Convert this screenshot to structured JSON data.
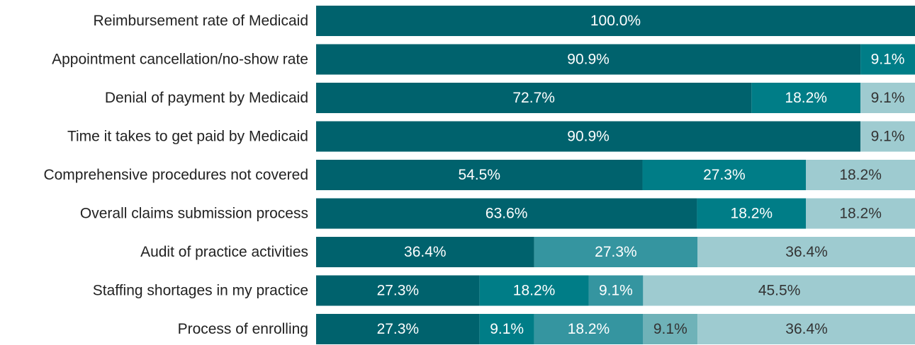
{
  "chart_data": {
    "type": "stacked_barh",
    "categories": [
      "Reimbursement rate of Medicaid",
      "Appointment cancellation/no-show rate",
      "Denial of payment by Medicaid",
      "Time it takes to get paid by Medicaid",
      "Comprehensive procedures not covered",
      "Overall claims submission process",
      "Audit of practice activities",
      "Staffing shortages in my practice",
      "Process of enrolling"
    ],
    "xlim": [
      0,
      100
    ],
    "series": [
      {
        "color": "#00626d",
        "text_color": "#ffffff",
        "values": [
          100,
          90.9,
          72.7,
          90.9,
          54.5,
          63.6,
          36.4,
          27.3,
          27.3
        ],
        "value_labels": [
          "100.0%",
          "90.9%",
          "72.7%",
          "90.9%",
          "54.5%",
          "63.6%",
          "36.4%",
          "27.3%",
          "27.3%"
        ]
      },
      {
        "color": "#007d87",
        "text_color": "#ffffff",
        "values": [
          null,
          9.1,
          18.2,
          null,
          27.3,
          18.2,
          null,
          18.2,
          9.1
        ],
        "value_labels": [
          null,
          "9.1%",
          "18.2%",
          null,
          "27.3%",
          "18.2%",
          null,
          "18.2%",
          "9.1%"
        ]
      },
      {
        "color": "#3595a0",
        "text_color": "#ffffff",
        "values": [
          null,
          null,
          null,
          null,
          null,
          null,
          27.3,
          9.1,
          18.2
        ],
        "value_labels": [
          null,
          null,
          null,
          null,
          null,
          null,
          "27.3%",
          "9.1%",
          "18.2%"
        ]
      },
      {
        "color": "#6fb2b8",
        "text_color": "#333333",
        "values": [
          null,
          null,
          null,
          null,
          null,
          null,
          null,
          null,
          9.1
        ],
        "value_labels": [
          null,
          null,
          null,
          null,
          null,
          null,
          null,
          null,
          "9.1%"
        ]
      },
      {
        "color": "#9ecbd0",
        "text_color": "#333333",
        "values": [
          null,
          null,
          9.1,
          9.1,
          18.2,
          18.2,
          36.4,
          45.5,
          36.4
        ],
        "value_labels": [
          null,
          null,
          "9.1%",
          "9.1%",
          "18.2%",
          "18.2%",
          "36.4%",
          "45.5%",
          "36.4%"
        ]
      }
    ]
  }
}
